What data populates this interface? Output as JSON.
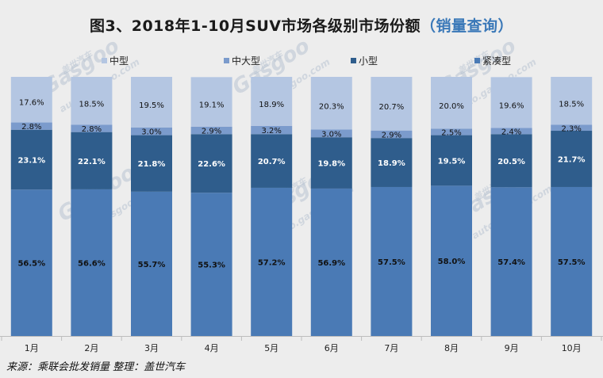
{
  "title": {
    "main": "图3、2018年1-10月SUV市场各级别市场份额",
    "highlight": "（销量查询）"
  },
  "source": "来源：乘联会批发销量    整理：盖世汽车",
  "watermark": {
    "brand": "Gasgoo",
    "cn": "盖世汽车",
    "url": "auto.gasgoo.com"
  },
  "colors": {
    "background": "#ededed",
    "紧凑型": "#4a7ab5",
    "小型": "#2f5d8c",
    "中大型": "#7b9bcc",
    "中型": "#b4c6e2"
  },
  "chart_data": {
    "type": "bar",
    "stacked": true,
    "unit": "%",
    "categories": [
      "1月",
      "2月",
      "3月",
      "4月",
      "5月",
      "6月",
      "7月",
      "8月",
      "9月",
      "10月"
    ],
    "series": [
      {
        "name": "紧凑型",
        "values": [
          56.5,
          56.6,
          55.7,
          55.3,
          57.2,
          56.9,
          57.5,
          58.0,
          57.4,
          57.5
        ],
        "labels": [
          "56.5%",
          "56.6%",
          "55.7%",
          "55.3%",
          "57.2%",
          "56.9%",
          "57.5%",
          "58.0%",
          "57.4%",
          "57.5%"
        ]
      },
      {
        "name": "小型",
        "values": [
          23.1,
          22.1,
          21.8,
          22.6,
          20.7,
          19.8,
          18.9,
          19.5,
          20.5,
          21.7
        ],
        "labels": [
          "23.1%",
          "22.1%",
          "21.8%",
          "22.6%",
          "20.7%",
          "19.8%",
          "18.9%",
          "19.5%",
          "20.5%",
          "21.7%"
        ]
      },
      {
        "name": "中大型",
        "values": [
          2.8,
          2.8,
          3.0,
          2.9,
          3.2,
          3.0,
          2.9,
          2.5,
          2.4,
          2.3
        ],
        "labels": [
          "2.8%",
          "2.8%",
          "3.0%",
          "2.9%",
          "3.2%",
          "3.0%",
          "2.9%",
          "2.5%",
          "2.4%",
          "2.3%"
        ]
      },
      {
        "name": "中型",
        "values": [
          17.6,
          18.5,
          19.5,
          19.1,
          18.9,
          20.3,
          20.7,
          20.0,
          19.6,
          18.5
        ],
        "labels": [
          "17.6%",
          "18.5%",
          "19.5%",
          "19.1%",
          "18.9%",
          "20.3%",
          "20.7%",
          "20.0%",
          "19.6%",
          "18.5%"
        ]
      }
    ],
    "legend": {
      "position": "top",
      "order": [
        "中型",
        "中大型",
        "小型",
        "紧凑型"
      ]
    },
    "ylim": [
      0,
      100
    ],
    "grid": false
  }
}
